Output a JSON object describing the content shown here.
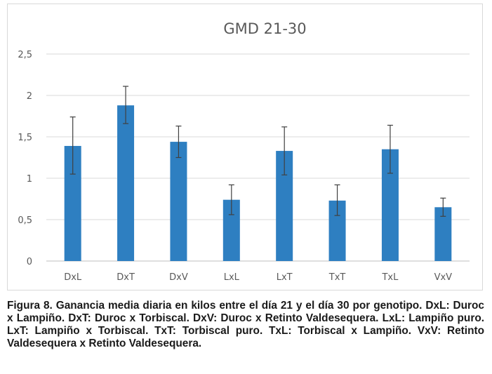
{
  "chart_data": {
    "type": "bar",
    "title": "GMD 21-30",
    "xlabel": "",
    "ylabel": "",
    "categories": [
      "DxL",
      "DxT",
      "DxV",
      "LxL",
      "LxT",
      "TxT",
      "TxL",
      "VxV"
    ],
    "values": [
      1.39,
      1.88,
      1.44,
      0.74,
      1.33,
      0.73,
      1.35,
      0.65
    ],
    "error_bars": [
      [
        1.05,
        1.74
      ],
      [
        1.66,
        2.11
      ],
      [
        1.25,
        1.63
      ],
      [
        0.56,
        0.92
      ],
      [
        1.04,
        1.62
      ],
      [
        0.55,
        0.92
      ],
      [
        1.06,
        1.64
      ],
      [
        0.54,
        0.76
      ]
    ],
    "ylim": [
      0,
      2.5
    ],
    "yticks": [
      "0",
      "0,5",
      "1",
      "1,5",
      "2",
      "2,5"
    ],
    "grid": true,
    "legend": "none",
    "colors": {
      "bar": "#2e7fc1",
      "error_bar": "#404040",
      "gridline": "#d9d9d9",
      "text": "#595959"
    }
  },
  "caption": "Figura 8. Ganancia media diaria en kilos entre el día 21 y el día 30 por genotipo. DxL: Duroc x Lampiño. DxT: Duroc x Torbiscal. DxV: Duroc x Retinto Valdesequera. LxL: Lampiño puro. LxT: Lampiño x Torbiscal. TxT: Torbiscal puro. TxL: Torbiscal x Lampiño. VxV: Retinto Valdesequera x Retinto Valdesequera."
}
